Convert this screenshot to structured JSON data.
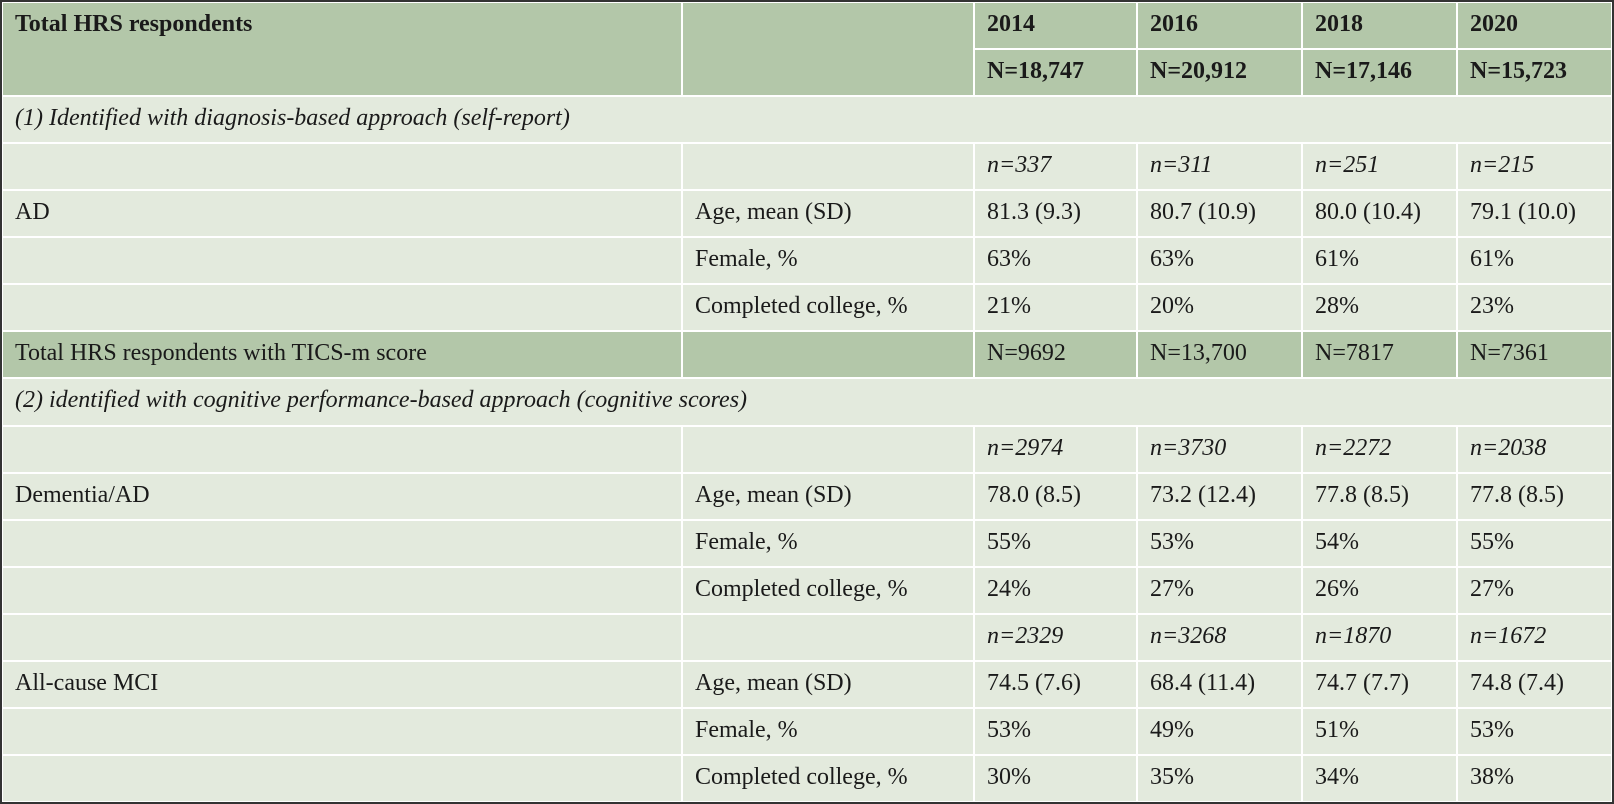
{
  "table": {
    "rows": [
      [
        "Total HRS respondents",
        null,
        "2014",
        "2016",
        "2018",
        "2020"
      ],
      [
        null,
        null,
        "N=18,747",
        "N=20,912",
        "N=17,146",
        "N=15,723"
      ],
      [
        "(1) Identified with diagnosis-based approach (self-report)"
      ],
      [
        null,
        null,
        "n=337",
        "n=311",
        "n=251",
        "n=215"
      ],
      [
        "AD",
        "Age, mean (SD)",
        "81.3 (9.3)",
        "80.7 (10.9)",
        "80.0 (10.4)",
        "79.1 (10.0)"
      ],
      [
        null,
        "Female, %",
        "63%",
        "63%",
        "61%",
        "61%"
      ],
      [
        null,
        "Completed college, %",
        "21%",
        "20%",
        "28%",
        "23%"
      ],
      [
        "Total HRS respondents with TICS-m score",
        null,
        "N=9692",
        "N=13,700",
        "N=7817",
        "N=7361"
      ],
      [
        "(2) identified with cognitive performance-based approach (cognitive scores)"
      ],
      [
        null,
        null,
        "n=2974",
        "n=3730",
        "n=2272",
        "n=2038"
      ],
      [
        "Dementia/AD",
        "Age, mean (SD)",
        "78.0 (8.5)",
        "73.2 (12.4)",
        "77.8 (8.5)",
        "77.8 (8.5)"
      ],
      [
        null,
        "Female, %",
        "55%",
        "53%",
        "54%",
        "55%"
      ],
      [
        null,
        "Completed college, %",
        "24%",
        "27%",
        "26%",
        "27%"
      ],
      [
        null,
        null,
        "n=2329",
        "n=3268",
        "n=1870",
        "n=1672"
      ],
      [
        "All-cause MCI",
        "Age, mean (SD)",
        "74.5 (7.6)",
        "68.4 (11.4)",
        "74.7 (7.7)",
        "74.8 (7.4)"
      ],
      [
        null,
        "Female, %",
        "53%",
        "49%",
        "51%",
        "53%"
      ],
      [
        null,
        "Completed college, %",
        "30%",
        "35%",
        "34%",
        "38%"
      ]
    ]
  }
}
